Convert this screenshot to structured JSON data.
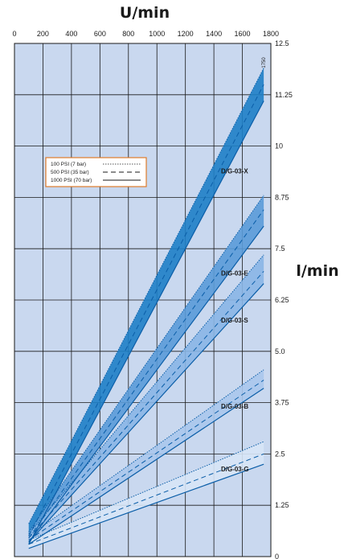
{
  "chart_data": {
    "type": "line",
    "title": "U/min",
    "xlabel": "U/min",
    "ylabel": "l/min",
    "xlim": [
      0,
      1800
    ],
    "ylim": [
      0,
      12.5
    ],
    "x_ticks": [
      "0",
      "200",
      "400",
      "600",
      "800",
      "1000",
      "1200",
      "1400",
      "1600",
      "1800"
    ],
    "y_ticks": [
      "0",
      "1.25",
      "2.5",
      "3.75",
      "5.0",
      "6.25",
      "7.5",
      "8.75",
      "10",
      "11.25",
      "12.5"
    ],
    "grid": true,
    "annotation": "1750",
    "legend": {
      "placement": "upper-left",
      "entries": [
        {
          "label": "100 PSI (7 bar)",
          "style": "dotted"
        },
        {
          "label": "500 PSI (35 bar)",
          "style": "dashed"
        },
        {
          "label": "1000 PSI (70 bar)",
          "style": "solid"
        }
      ]
    },
    "series": [
      {
        "name": "D/G-03-X",
        "x": [
          100,
          1750
        ],
        "psi100": [
          0.8,
          11.9
        ],
        "psi500": [
          0.5,
          11.5
        ],
        "psi1000": [
          0.3,
          11.1
        ]
      },
      {
        "name": "D/G-03-E",
        "x": [
          100,
          1750
        ],
        "psi100": [
          0.6,
          8.8
        ],
        "psi500": [
          0.45,
          8.45
        ],
        "psi1000": [
          0.35,
          8.05
        ]
      },
      {
        "name": "D/G-03-S",
        "x": [
          100,
          1750
        ],
        "psi100": [
          0.55,
          7.35
        ],
        "psi500": [
          0.45,
          6.95
        ],
        "psi1000": [
          0.35,
          6.65
        ]
      },
      {
        "name": "D/G-03-B",
        "x": [
          100,
          1750
        ],
        "psi100": [
          0.5,
          4.55
        ],
        "psi500": [
          0.4,
          4.3
        ],
        "psi1000": [
          0.3,
          4.1
        ]
      },
      {
        "name": "D/G-03-G",
        "x": [
          100,
          1750
        ],
        "psi100": [
          0.4,
          2.8
        ],
        "psi500": [
          0.3,
          2.5
        ],
        "psi1000": [
          0.2,
          2.25
        ]
      }
    ]
  },
  "colors": {
    "plot_bg": "#c9d8ef",
    "grid": "#1a1a1a",
    "band_x": "#1e7fc6",
    "band_e": "#5a9bd8",
    "band_s": "#8ab6e6",
    "band_b": "#aac8ec",
    "band_g": "#d7e5f6",
    "line_dark": "#0b5ea8",
    "legend_border": "#e07b2a"
  }
}
